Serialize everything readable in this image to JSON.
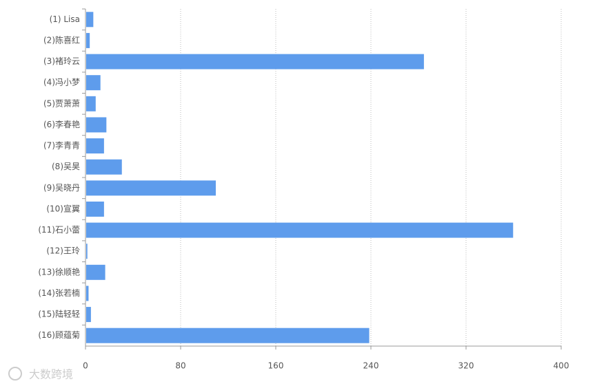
{
  "chart_data": {
    "type": "bar",
    "orientation": "horizontal",
    "categories": [
      "(1) Lisa",
      "(2)陈喜红",
      "(3)褚玲云",
      "(4)冯小梦",
      "(5)贾萧萧",
      "(6)李春艳",
      "(7)李青青",
      "(8)吴昊",
      "(9)吴晓丹",
      "(10)宣翼",
      "(11)石小蕾",
      "(12)王玲",
      "(13)徐顺艳",
      "(14)张若楠",
      "(15)陆轻轻",
      "(16)顾蕴菊"
    ],
    "values": [
      6,
      3,
      284,
      12,
      8,
      17,
      15,
      30,
      109,
      15,
      359,
      1,
      16,
      2,
      4,
      238
    ],
    "color": "#5e9cec",
    "xlim": [
      0,
      400
    ],
    "xticks": [
      0,
      80,
      160,
      240,
      320,
      400
    ],
    "grid": true,
    "watermark": "大数跨境"
  }
}
